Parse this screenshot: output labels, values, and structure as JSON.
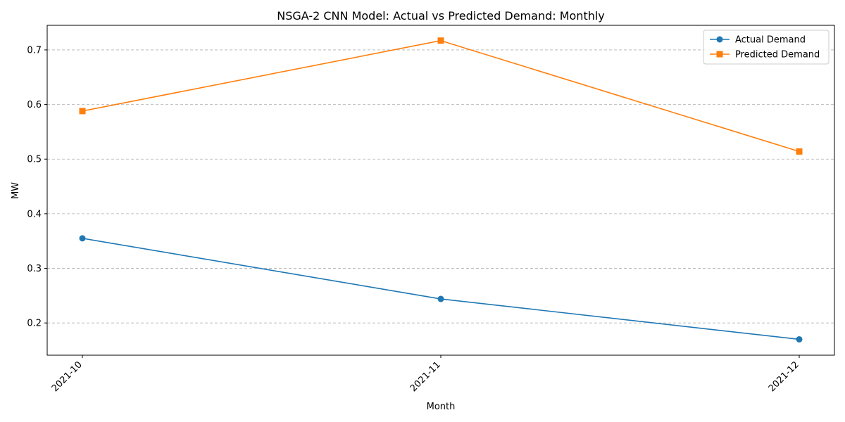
{
  "chart_data": {
    "type": "line",
    "title": "NSGA-2 CNN Model: Actual vs Predicted Demand: Monthly",
    "xlabel": "Month",
    "ylabel": "MW",
    "categories": [
      "2021-10",
      "2021-11",
      "2021-12"
    ],
    "ylim": [
      0.141,
      0.745
    ],
    "yticks": [
      0.2,
      0.3,
      0.4,
      0.5,
      0.6,
      0.7
    ],
    "ytick_labels": [
      "0.2",
      "0.3",
      "0.4",
      "0.5",
      "0.6",
      "0.7"
    ],
    "grid": "y-dashed",
    "legend": "top-right",
    "series": [
      {
        "name": "Actual Demand",
        "values": [
          0.355,
          0.244,
          0.17
        ],
        "color": "#1f77b4",
        "marker": "circle"
      },
      {
        "name": "Predicted Demand",
        "values": [
          0.588,
          0.717,
          0.514
        ],
        "color": "#ff7f0e",
        "marker": "square"
      }
    ]
  }
}
